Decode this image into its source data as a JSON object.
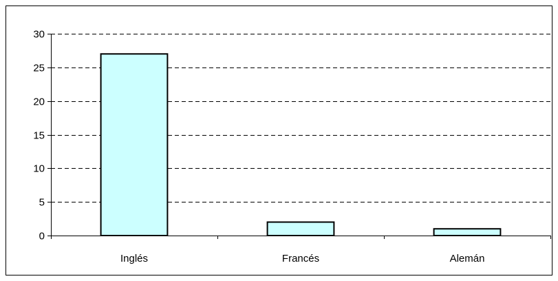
{
  "chart_data": {
    "type": "bar",
    "title": "",
    "xlabel": "",
    "ylabel": "",
    "categories": [
      "Inglés",
      "Francés",
      "Alemán"
    ],
    "values": [
      27,
      2,
      1
    ],
    "ylim": [
      0,
      30
    ],
    "yticks": [
      0,
      5,
      10,
      15,
      20,
      25,
      30
    ],
    "grid": "horizontal-dashed",
    "legend": "none",
    "colors": {
      "bar_fill": "#ccffff",
      "bar_stroke": "#000000",
      "grid": "#000000",
      "axis": "#000000"
    }
  }
}
